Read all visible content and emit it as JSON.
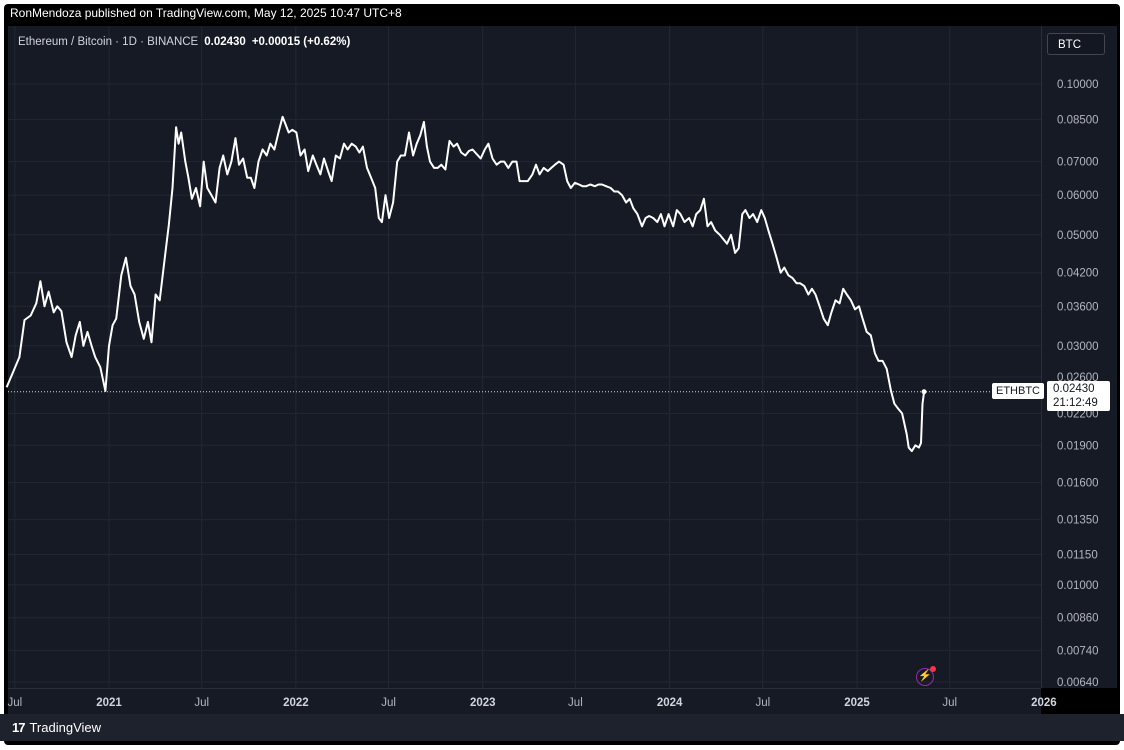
{
  "header": {
    "published_text": "RonMendoza published on TradingView.com, May 12, 2025 10:47 UTC+8"
  },
  "symbol": {
    "title": "Ethereum / Bitcoin · 1D · BINANCE",
    "price": "0.02430",
    "change": "+0.00015 (+0.62%)"
  },
  "currency": "BTC",
  "last_price": {
    "symbol": "ETHBTC",
    "value": "0.02430",
    "countdown": "21:12:49"
  },
  "footer": {
    "brand": "TradingView",
    "brand_mark": "17"
  },
  "icons": {
    "flash": "lightning-icon"
  },
  "colors": {
    "background": "#161a25",
    "line": "#ffffff",
    "accent": "#9c27b0"
  },
  "chart_data": {
    "type": "line",
    "scale": "log",
    "grid": true,
    "ylim": [
      0.0062,
      0.115
    ],
    "xlim": [
      "2020-06-15",
      "2026-01-05"
    ],
    "y_ticks": [
      "0.10000",
      "0.08500",
      "0.07000",
      "0.06000",
      "0.05000",
      "0.04200",
      "0.03600",
      "0.03000",
      "0.02600",
      "0.02200",
      "0.01900",
      "0.01600",
      "0.01350",
      "0.01150",
      "0.01000",
      "0.00860",
      "0.00740",
      "0.00640"
    ],
    "x_ticks": [
      {
        "label": "Jul",
        "date": "2020-07-01",
        "bold": false
      },
      {
        "label": "2021",
        "date": "2021-01-01",
        "bold": true
      },
      {
        "label": "Jul",
        "date": "2021-07-01",
        "bold": false
      },
      {
        "label": "2022",
        "date": "2022-01-01",
        "bold": true
      },
      {
        "label": "Jul",
        "date": "2022-07-01",
        "bold": false
      },
      {
        "label": "2023",
        "date": "2023-01-01",
        "bold": true
      },
      {
        "label": "Jul",
        "date": "2023-07-01",
        "bold": false
      },
      {
        "label": "2024",
        "date": "2024-01-01",
        "bold": true
      },
      {
        "label": "Jul",
        "date": "2024-07-01",
        "bold": false
      },
      {
        "label": "2025",
        "date": "2025-01-01",
        "bold": true
      },
      {
        "label": "Jul",
        "date": "2025-07-01",
        "bold": false
      },
      {
        "label": "2026",
        "date": "2026-01-01",
        "bold": true
      }
    ],
    "series": [
      {
        "name": "ETHBTC",
        "points": [
          [
            "2020-06-15",
            0.0248
          ],
          [
            "2020-06-25",
            0.0262
          ],
          [
            "2020-07-10",
            0.0285
          ],
          [
            "2020-07-20",
            0.0338
          ],
          [
            "2020-08-01",
            0.0345
          ],
          [
            "2020-08-12",
            0.0365
          ],
          [
            "2020-08-20",
            0.0404
          ],
          [
            "2020-08-28",
            0.036
          ],
          [
            "2020-09-05",
            0.0385
          ],
          [
            "2020-09-15",
            0.035
          ],
          [
            "2020-09-22",
            0.036
          ],
          [
            "2020-09-30",
            0.0352
          ],
          [
            "2020-10-10",
            0.0305
          ],
          [
            "2020-10-20",
            0.0285
          ],
          [
            "2020-10-28",
            0.0315
          ],
          [
            "2020-11-05",
            0.0335
          ],
          [
            "2020-11-12",
            0.03
          ],
          [
            "2020-11-20",
            0.032
          ],
          [
            "2020-11-28",
            0.03
          ],
          [
            "2020-12-05",
            0.0285
          ],
          [
            "2020-12-15",
            0.0272
          ],
          [
            "2020-12-25",
            0.0244
          ],
          [
            "2021-01-01",
            0.03
          ],
          [
            "2021-01-08",
            0.033
          ],
          [
            "2021-01-15",
            0.034
          ],
          [
            "2021-01-25",
            0.0415
          ],
          [
            "2021-02-03",
            0.045
          ],
          [
            "2021-02-12",
            0.0395
          ],
          [
            "2021-02-20",
            0.038
          ],
          [
            "2021-03-01",
            0.0335
          ],
          [
            "2021-03-10",
            0.031
          ],
          [
            "2021-03-18",
            0.0335
          ],
          [
            "2021-03-25",
            0.0305
          ],
          [
            "2021-04-02",
            0.038
          ],
          [
            "2021-04-10",
            0.037
          ],
          [
            "2021-04-20",
            0.045
          ],
          [
            "2021-04-28",
            0.0525
          ],
          [
            "2021-05-05",
            0.062
          ],
          [
            "2021-05-12",
            0.082
          ],
          [
            "2021-05-17",
            0.076
          ],
          [
            "2021-05-22",
            0.08
          ],
          [
            "2021-05-30",
            0.07
          ],
          [
            "2021-06-05",
            0.065
          ],
          [
            "2021-06-12",
            0.059
          ],
          [
            "2021-06-20",
            0.062
          ],
          [
            "2021-06-28",
            0.057
          ],
          [
            "2021-07-05",
            0.07
          ],
          [
            "2021-07-12",
            0.062
          ],
          [
            "2021-07-20",
            0.06
          ],
          [
            "2021-07-28",
            0.058
          ],
          [
            "2021-08-05",
            0.068
          ],
          [
            "2021-08-12",
            0.072
          ],
          [
            "2021-08-20",
            0.066
          ],
          [
            "2021-08-28",
            0.07
          ],
          [
            "2021-09-05",
            0.078
          ],
          [
            "2021-09-12",
            0.069
          ],
          [
            "2021-09-20",
            0.071
          ],
          [
            "2021-09-28",
            0.065
          ],
          [
            "2021-10-05",
            0.065
          ],
          [
            "2021-10-12",
            0.062
          ],
          [
            "2021-10-20",
            0.07
          ],
          [
            "2021-10-28",
            0.074
          ],
          [
            "2021-11-05",
            0.072
          ],
          [
            "2021-11-12",
            0.076
          ],
          [
            "2021-11-20",
            0.074
          ],
          [
            "2021-11-28",
            0.08
          ],
          [
            "2021-12-06",
            0.086
          ],
          [
            "2021-12-12",
            0.083
          ],
          [
            "2021-12-18",
            0.08
          ],
          [
            "2021-12-25",
            0.081
          ],
          [
            "2022-01-02",
            0.08
          ],
          [
            "2022-01-10",
            0.072
          ],
          [
            "2022-01-18",
            0.074
          ],
          [
            "2022-01-25",
            0.067
          ],
          [
            "2022-02-03",
            0.072
          ],
          [
            "2022-02-10",
            0.069
          ],
          [
            "2022-02-18",
            0.066
          ],
          [
            "2022-02-25",
            0.071
          ],
          [
            "2022-03-05",
            0.067
          ],
          [
            "2022-03-12",
            0.064
          ],
          [
            "2022-03-20",
            0.072
          ],
          [
            "2022-03-28",
            0.071
          ],
          [
            "2022-04-05",
            0.076
          ],
          [
            "2022-04-12",
            0.074
          ],
          [
            "2022-04-20",
            0.076
          ],
          [
            "2022-04-28",
            0.075
          ],
          [
            "2022-05-05",
            0.073
          ],
          [
            "2022-05-12",
            0.075
          ],
          [
            "2022-05-20",
            0.068
          ],
          [
            "2022-05-28",
            0.065
          ],
          [
            "2022-06-05",
            0.062
          ],
          [
            "2022-06-12",
            0.054
          ],
          [
            "2022-06-18",
            0.053
          ],
          [
            "2022-06-25",
            0.06
          ],
          [
            "2022-07-02",
            0.054
          ],
          [
            "2022-07-10",
            0.058
          ],
          [
            "2022-07-18",
            0.07
          ],
          [
            "2022-07-25",
            0.072
          ],
          [
            "2022-08-02",
            0.072
          ],
          [
            "2022-08-10",
            0.08
          ],
          [
            "2022-08-18",
            0.072
          ],
          [
            "2022-08-25",
            0.076
          ],
          [
            "2022-09-01",
            0.079
          ],
          [
            "2022-09-08",
            0.084
          ],
          [
            "2022-09-14",
            0.075
          ],
          [
            "2022-09-20",
            0.07
          ],
          [
            "2022-09-28",
            0.068
          ],
          [
            "2022-10-05",
            0.068
          ],
          [
            "2022-10-12",
            0.069
          ],
          [
            "2022-10-20",
            0.0675
          ],
          [
            "2022-10-28",
            0.077
          ],
          [
            "2022-11-05",
            0.075
          ],
          [
            "2022-11-12",
            0.076
          ],
          [
            "2022-11-20",
            0.073
          ],
          [
            "2022-11-28",
            0.072
          ],
          [
            "2022-12-05",
            0.0735
          ],
          [
            "2022-12-12",
            0.074
          ],
          [
            "2022-12-20",
            0.0725
          ],
          [
            "2022-12-28",
            0.071
          ],
          [
            "2023-01-05",
            0.074
          ],
          [
            "2023-01-12",
            0.076
          ],
          [
            "2023-01-20",
            0.071
          ],
          [
            "2023-01-28",
            0.069
          ],
          [
            "2023-02-05",
            0.07
          ],
          [
            "2023-02-12",
            0.07
          ],
          [
            "2023-02-20",
            0.068
          ],
          [
            "2023-02-28",
            0.07
          ],
          [
            "2023-03-08",
            0.07
          ],
          [
            "2023-03-14",
            0.064
          ],
          [
            "2023-03-22",
            0.064
          ],
          [
            "2023-03-30",
            0.064
          ],
          [
            "2023-04-08",
            0.066
          ],
          [
            "2023-04-15",
            0.069
          ],
          [
            "2023-04-22",
            0.066
          ],
          [
            "2023-04-30",
            0.068
          ],
          [
            "2023-05-08",
            0.067
          ],
          [
            "2023-05-15",
            0.068
          ],
          [
            "2023-05-22",
            0.069
          ],
          [
            "2023-05-30",
            0.07
          ],
          [
            "2023-06-08",
            0.069
          ],
          [
            "2023-06-15",
            0.064
          ],
          [
            "2023-06-22",
            0.062
          ],
          [
            "2023-06-30",
            0.0635
          ],
          [
            "2023-07-08",
            0.063
          ],
          [
            "2023-07-15",
            0.0625
          ],
          [
            "2023-07-22",
            0.0625
          ],
          [
            "2023-07-30",
            0.063
          ],
          [
            "2023-08-08",
            0.0625
          ],
          [
            "2023-08-15",
            0.063
          ],
          [
            "2023-08-22",
            0.063
          ],
          [
            "2023-08-30",
            0.0625
          ],
          [
            "2023-09-08",
            0.062
          ],
          [
            "2023-09-15",
            0.061
          ],
          [
            "2023-09-22",
            0.061
          ],
          [
            "2023-09-30",
            0.06
          ],
          [
            "2023-10-08",
            0.058
          ],
          [
            "2023-10-15",
            0.059
          ],
          [
            "2023-10-22",
            0.0565
          ],
          [
            "2023-10-30",
            0.055
          ],
          [
            "2023-11-08",
            0.052
          ],
          [
            "2023-11-15",
            0.054
          ],
          [
            "2023-11-22",
            0.0545
          ],
          [
            "2023-11-30",
            0.054
          ],
          [
            "2023-12-08",
            0.053
          ],
          [
            "2023-12-15",
            0.055
          ],
          [
            "2023-12-22",
            0.052
          ],
          [
            "2023-12-30",
            0.055
          ],
          [
            "2024-01-08",
            0.052
          ],
          [
            "2024-01-15",
            0.056
          ],
          [
            "2024-01-22",
            0.055
          ],
          [
            "2024-01-30",
            0.053
          ],
          [
            "2024-02-08",
            0.054
          ],
          [
            "2024-02-15",
            0.052
          ],
          [
            "2024-02-22",
            0.055
          ],
          [
            "2024-03-01",
            0.056
          ],
          [
            "2024-03-08",
            0.059
          ],
          [
            "2024-03-15",
            0.052
          ],
          [
            "2024-03-22",
            0.053
          ],
          [
            "2024-03-30",
            0.051
          ],
          [
            "2024-04-08",
            0.05
          ],
          [
            "2024-04-15",
            0.049
          ],
          [
            "2024-04-22",
            0.048
          ],
          [
            "2024-04-30",
            0.05
          ],
          [
            "2024-05-08",
            0.046
          ],
          [
            "2024-05-15",
            0.047
          ],
          [
            "2024-05-22",
            0.055
          ],
          [
            "2024-05-28",
            0.056
          ],
          [
            "2024-06-05",
            0.054
          ],
          [
            "2024-06-12",
            0.055
          ],
          [
            "2024-06-20",
            0.053
          ],
          [
            "2024-06-28",
            0.056
          ],
          [
            "2024-07-05",
            0.054
          ],
          [
            "2024-07-12",
            0.051
          ],
          [
            "2024-07-20",
            0.048
          ],
          [
            "2024-07-28",
            0.045
          ],
          [
            "2024-08-05",
            0.042
          ],
          [
            "2024-08-12",
            0.043
          ],
          [
            "2024-08-20",
            0.0415
          ],
          [
            "2024-08-28",
            0.041
          ],
          [
            "2024-09-05",
            0.04
          ],
          [
            "2024-09-12",
            0.04
          ],
          [
            "2024-09-20",
            0.0395
          ],
          [
            "2024-09-28",
            0.038
          ],
          [
            "2024-10-05",
            0.039
          ],
          [
            "2024-10-12",
            0.038
          ],
          [
            "2024-10-20",
            0.036
          ],
          [
            "2024-10-28",
            0.034
          ],
          [
            "2024-11-05",
            0.033
          ],
          [
            "2024-11-12",
            0.035
          ],
          [
            "2024-11-20",
            0.037
          ],
          [
            "2024-11-28",
            0.0365
          ],
          [
            "2024-12-05",
            0.039
          ],
          [
            "2024-12-12",
            0.038
          ],
          [
            "2024-12-20",
            0.037
          ],
          [
            "2024-12-28",
            0.0355
          ],
          [
            "2025-01-05",
            0.036
          ],
          [
            "2025-01-12",
            0.034
          ],
          [
            "2025-01-20",
            0.032
          ],
          [
            "2025-01-28",
            0.0315
          ],
          [
            "2025-02-05",
            0.029
          ],
          [
            "2025-02-12",
            0.028
          ],
          [
            "2025-02-20",
            0.028
          ],
          [
            "2025-02-28",
            0.027
          ],
          [
            "2025-03-08",
            0.0245
          ],
          [
            "2025-03-15",
            0.023
          ],
          [
            "2025-03-22",
            0.0225
          ],
          [
            "2025-03-30",
            0.022
          ],
          [
            "2025-04-08",
            0.02
          ],
          [
            "2025-04-12",
            0.0188
          ],
          [
            "2025-04-18",
            0.0185
          ],
          [
            "2025-04-25",
            0.019
          ],
          [
            "2025-05-02",
            0.0188
          ],
          [
            "2025-05-06",
            0.0192
          ],
          [
            "2025-05-09",
            0.023
          ],
          [
            "2025-05-12",
            0.0243
          ]
        ]
      }
    ]
  }
}
